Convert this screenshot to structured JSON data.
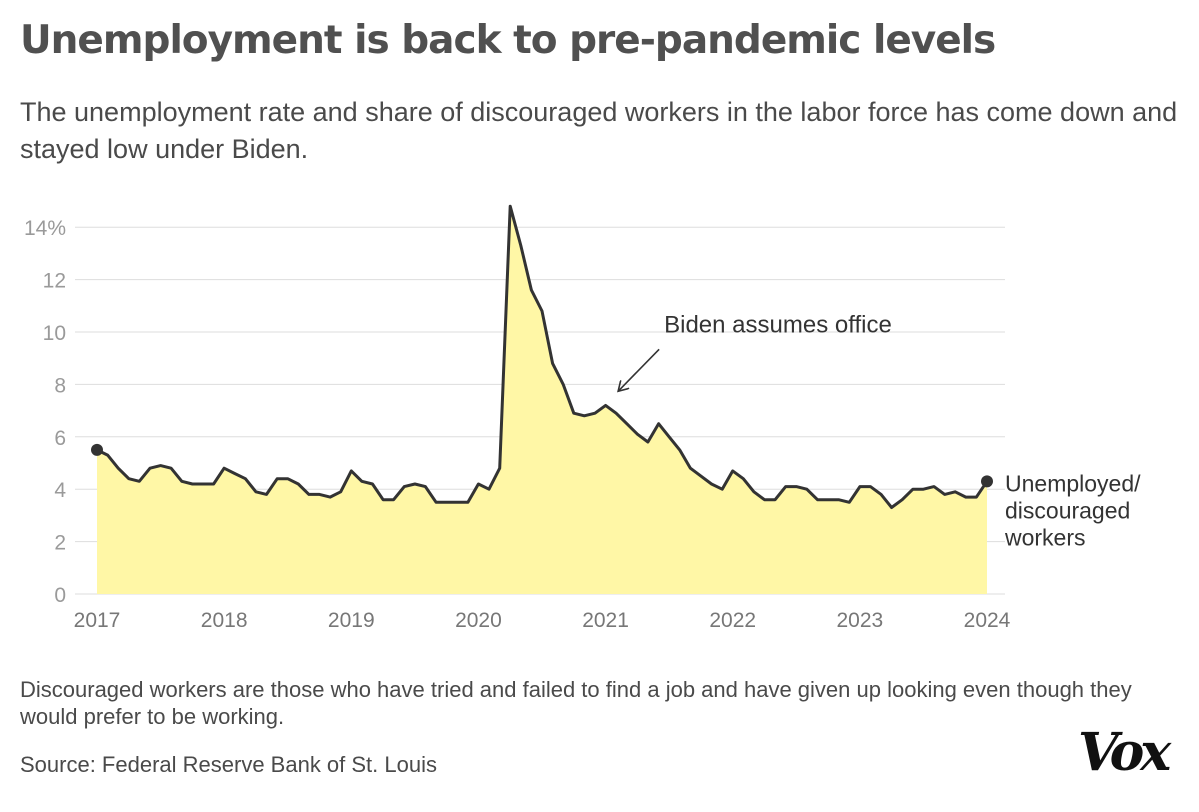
{
  "header": {
    "title": "Unemployment is back to pre-pandemic levels",
    "subtitle": "The unemployment rate and share of discouraged workers in the labor force has come down and stayed low under Biden."
  },
  "footer": {
    "note": "Discouraged workers are those who have tried and failed to find a job and have given up looking even though they would prefer to be working.",
    "source": "Source: Federal Reserve Bank of St. Louis",
    "logo_text": "Vox"
  },
  "colors": {
    "line": "#333333",
    "fill": "#fff7a6",
    "grid": "#dddddd",
    "text": "#4a4a4a"
  },
  "chart_data": {
    "type": "area",
    "xlabel": "",
    "ylabel": "",
    "x_range": [
      2017.0,
      2024.0
    ],
    "ylim": [
      0,
      15
    ],
    "y_ticks": [
      {
        "value": 0,
        "label": "0"
      },
      {
        "value": 2,
        "label": "2"
      },
      {
        "value": 4,
        "label": "4"
      },
      {
        "value": 6,
        "label": "6"
      },
      {
        "value": 8,
        "label": "8"
      },
      {
        "value": 10,
        "label": "10"
      },
      {
        "value": 12,
        "label": "12"
      },
      {
        "value": 14,
        "label": "14%"
      }
    ],
    "x_ticks": [
      {
        "value": 2017,
        "label": "2017"
      },
      {
        "value": 2018,
        "label": "2018"
      },
      {
        "value": 2019,
        "label": "2019"
      },
      {
        "value": 2020,
        "label": "2020"
      },
      {
        "value": 2021,
        "label": "2021"
      },
      {
        "value": 2022,
        "label": "2022"
      },
      {
        "value": 2023,
        "label": "2023"
      },
      {
        "value": 2024,
        "label": "2024"
      }
    ],
    "grid": true,
    "series": [
      {
        "name": "Unemployed/ discouraged workers",
        "x": [
          2017.0,
          2017.083,
          2017.167,
          2017.25,
          2017.333,
          2017.417,
          2017.5,
          2017.583,
          2017.667,
          2017.75,
          2017.833,
          2017.917,
          2018.0,
          2018.083,
          2018.167,
          2018.25,
          2018.333,
          2018.417,
          2018.5,
          2018.583,
          2018.667,
          2018.75,
          2018.833,
          2018.917,
          2019.0,
          2019.083,
          2019.167,
          2019.25,
          2019.333,
          2019.417,
          2019.5,
          2019.583,
          2019.667,
          2019.75,
          2019.833,
          2019.917,
          2020.0,
          2020.083,
          2020.167,
          2020.25,
          2020.333,
          2020.417,
          2020.5,
          2020.583,
          2020.667,
          2020.75,
          2020.833,
          2020.917,
          2021.0,
          2021.083,
          2021.167,
          2021.25,
          2021.333,
          2021.417,
          2021.5,
          2021.583,
          2021.667,
          2021.75,
          2021.833,
          2021.917,
          2022.0,
          2022.083,
          2022.167,
          2022.25,
          2022.333,
          2022.417,
          2022.5,
          2022.583,
          2022.667,
          2022.75,
          2022.833,
          2022.917,
          2023.0,
          2023.083,
          2023.167,
          2023.25,
          2023.333,
          2023.417,
          2023.5,
          2023.583,
          2023.667,
          2023.75,
          2023.833,
          2023.917,
          2024.0
        ],
        "values": [
          5.5,
          5.3,
          4.8,
          4.4,
          4.3,
          4.8,
          4.9,
          4.8,
          4.3,
          4.2,
          4.2,
          4.2,
          4.8,
          4.6,
          4.4,
          3.9,
          3.8,
          4.4,
          4.4,
          4.2,
          3.8,
          3.8,
          3.7,
          3.9,
          4.7,
          4.3,
          4.2,
          3.6,
          3.6,
          4.1,
          4.2,
          4.1,
          3.5,
          3.5,
          3.5,
          3.5,
          4.2,
          4.0,
          4.8,
          14.8,
          13.3,
          11.6,
          10.8,
          8.8,
          8.0,
          6.9,
          6.8,
          6.9,
          7.2,
          6.9,
          6.5,
          6.1,
          5.8,
          6.5,
          6.0,
          5.5,
          4.8,
          4.5,
          4.2,
          4.0,
          4.7,
          4.4,
          3.9,
          3.6,
          3.6,
          4.1,
          4.1,
          4.0,
          3.6,
          3.6,
          3.6,
          3.5,
          4.1,
          4.1,
          3.8,
          3.3,
          3.6,
          4.0,
          4.0,
          4.1,
          3.8,
          3.9,
          3.7,
          3.7,
          4.3
        ]
      }
    ],
    "annotations": [
      {
        "text": "Biden assumes office",
        "x": 2021.083,
        "y": 7.7
      }
    ]
  }
}
